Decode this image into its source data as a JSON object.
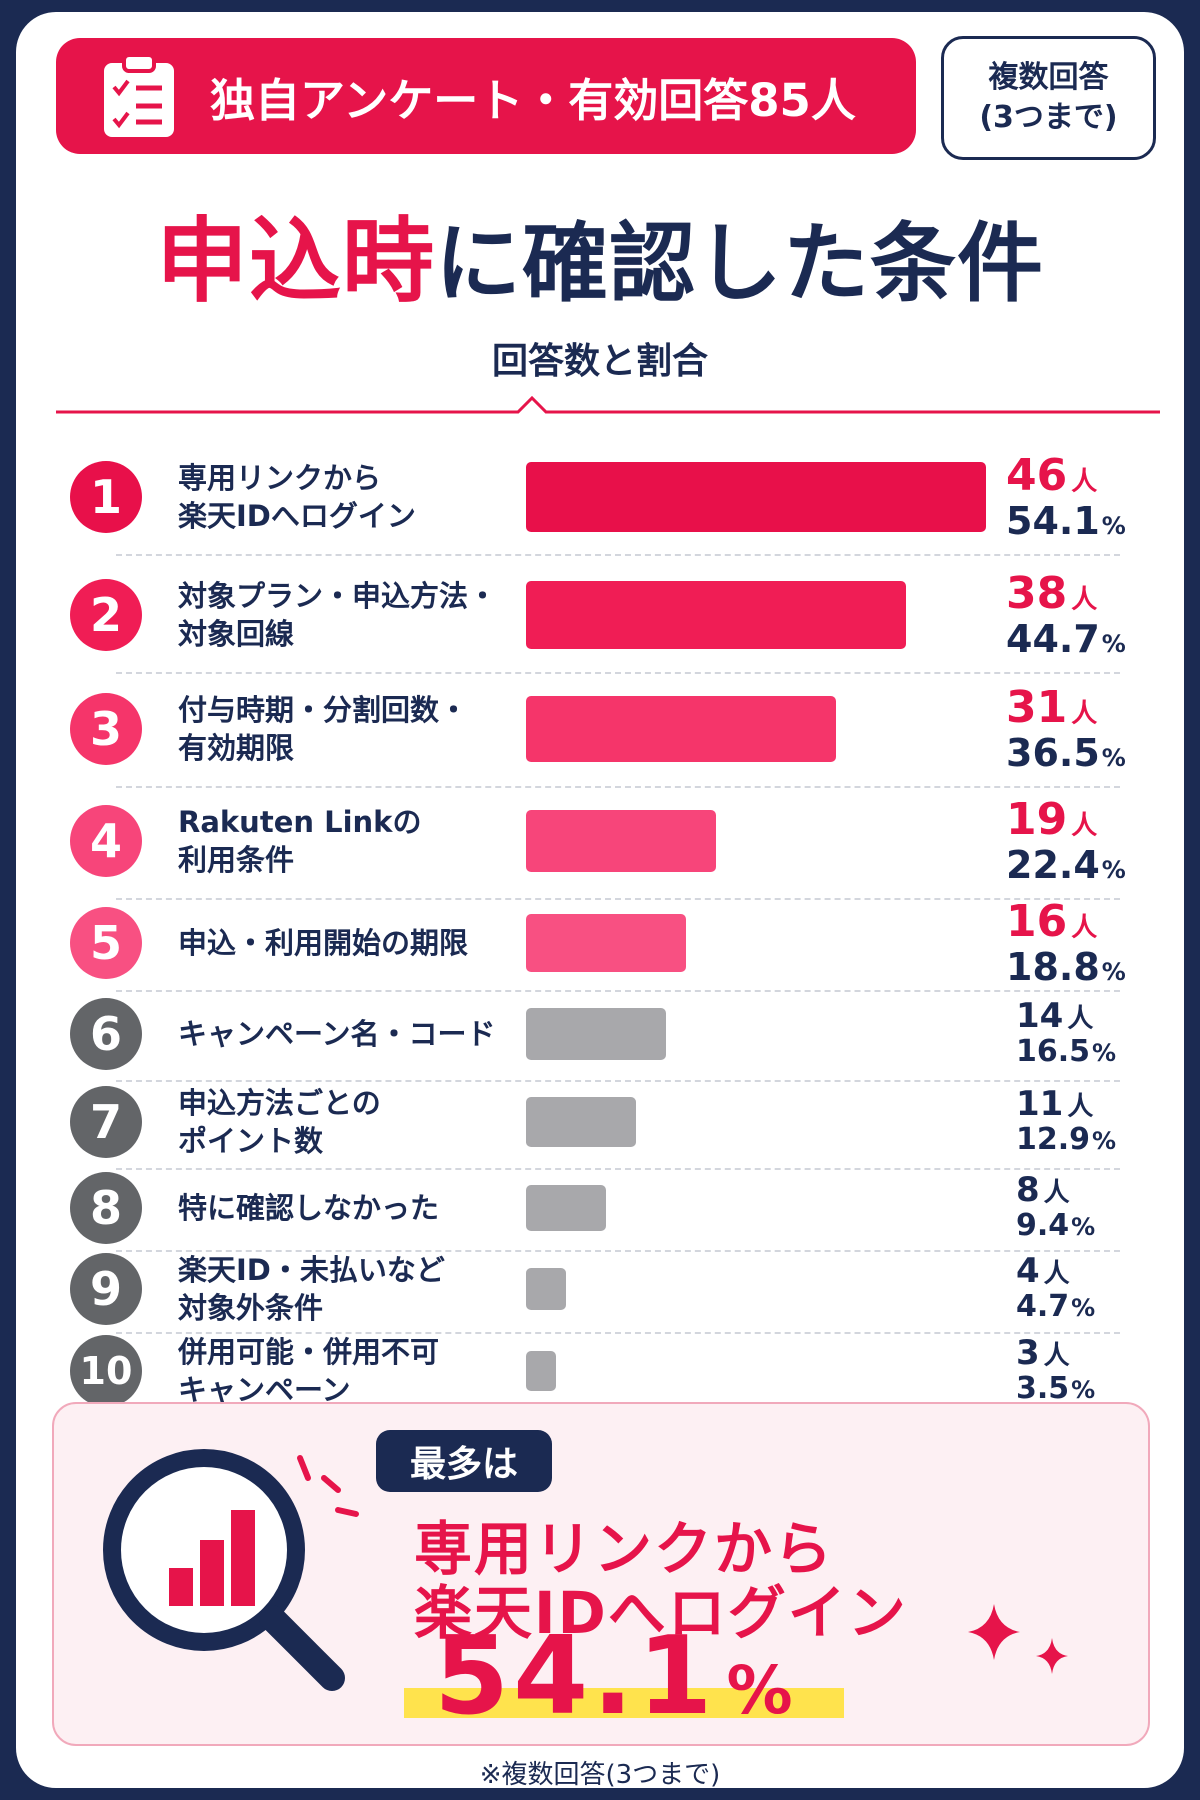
{
  "header": {
    "survey_label": "独自アンケート・有効回答85人",
    "multi_answer_line1": "複数回答",
    "multi_answer_line2": "(3つまで)"
  },
  "title": {
    "highlight": "申込時",
    "rest": "に確認した条件"
  },
  "subtitle": "回答数と割合",
  "colors": {
    "accent_red": "#e6144a",
    "navy": "#1b2a52",
    "pink_1": "#e8104a",
    "pink_2": "#f01d55",
    "pink_3": "#f5356a",
    "pink_4": "#f7457a",
    "pink_5": "#f85082",
    "gray_bar": "#a8a8ab",
    "gray_circle": "#636568"
  },
  "chart_data": {
    "type": "bar",
    "orientation": "horizontal",
    "title": "申込時に確認した条件",
    "subtitle": "回答数と割合",
    "count_unit": "人",
    "percent_unit": "%",
    "xlim": [
      0,
      46
    ],
    "grid": false,
    "legend": "none",
    "items": [
      {
        "rank": "1",
        "label": "専用リンクから\n楽天IDへログイン",
        "count": 46,
        "percent": "54.1"
      },
      {
        "rank": "2",
        "label": "対象プラン・申込方法・\n対象回線",
        "count": 38,
        "percent": "44.7"
      },
      {
        "rank": "3",
        "label": "付与時期・分割回数・\n有効期限",
        "count": 31,
        "percent": "36.5"
      },
      {
        "rank": "4",
        "label": "Rakuten Linkの\n利用条件",
        "count": 19,
        "percent": "22.4"
      },
      {
        "rank": "5",
        "label": "申込・利用開始の期限",
        "count": 16,
        "percent": "18.8"
      },
      {
        "rank": "6",
        "label": "キャンペーン名・コード",
        "count": 14,
        "percent": "16.5"
      },
      {
        "rank": "7",
        "label": "申込方法ごとの\nポイント数",
        "count": 11,
        "percent": "12.9"
      },
      {
        "rank": "8",
        "label": "特に確認しなかった",
        "count": 8,
        "percent": "9.4"
      },
      {
        "rank": "9",
        "label": "楽天ID・未払いなど\n対象外条件",
        "count": 4,
        "percent": "4.7"
      },
      {
        "rank": "10",
        "label": "併用可能・併用不可\nキャンペーン",
        "count": 3,
        "percent": "3.5"
      }
    ]
  },
  "summary": {
    "badge": "最多は",
    "line1": "専用リンクから",
    "line2": "楽天IDへログイン",
    "percent_value": "54.1",
    "percent_unit": "%"
  },
  "footnote": "※複数回答(3つまで)"
}
